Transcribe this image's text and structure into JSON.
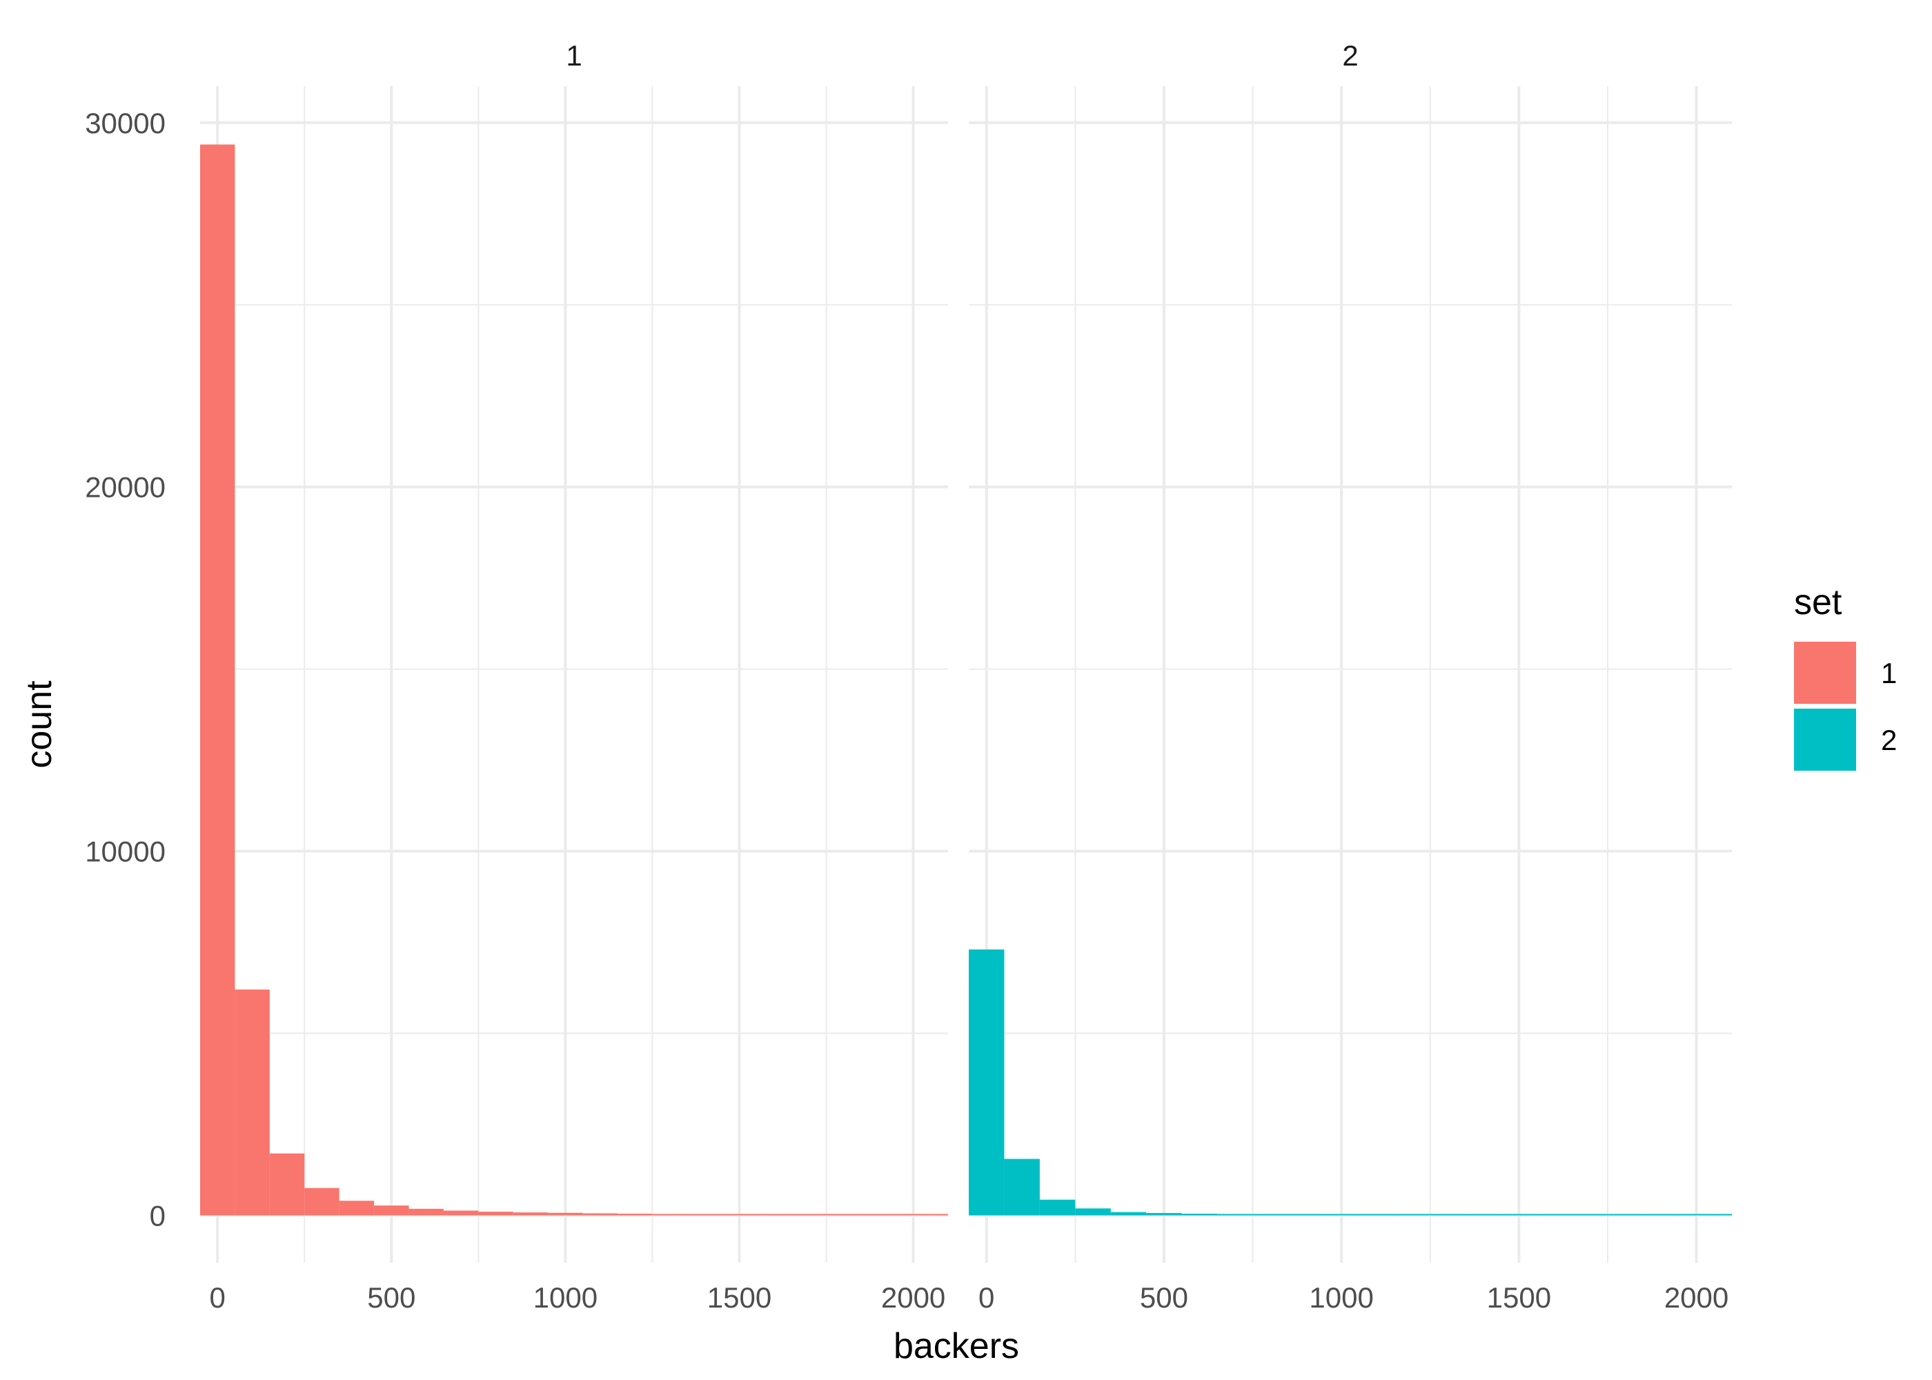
{
  "chart_data": {
    "type": "bar",
    "subtype": "histogram-faceted",
    "xlabel": "backers",
    "ylabel": "count",
    "xlim": [
      -50,
      2100
    ],
    "ylim": [
      -1300,
      31000
    ],
    "x_ticks": [
      0,
      500,
      1000,
      1500,
      2000
    ],
    "y_ticks": [
      0,
      10000,
      20000,
      30000
    ],
    "x_tick_labels": [
      "0",
      "500",
      "1000",
      "1500",
      "2000"
    ],
    "y_tick_labels": [
      "0",
      "10000",
      "20000",
      "30000"
    ],
    "bin_width": 100,
    "grid": true,
    "legend": {
      "title": "set",
      "position": "right",
      "entries": [
        {
          "label": "1",
          "color": "#F8766D"
        },
        {
          "label": "2",
          "color": "#00BFC4"
        }
      ]
    },
    "facets": [
      {
        "label": "1",
        "color": "#F8766D",
        "bins": [
          {
            "x0": -50,
            "x1": 50,
            "count": 29400
          },
          {
            "x0": 50,
            "x1": 150,
            "count": 6200
          },
          {
            "x0": 150,
            "x1": 250,
            "count": 1700
          },
          {
            "x0": 250,
            "x1": 350,
            "count": 750
          },
          {
            "x0": 350,
            "x1": 450,
            "count": 400
          },
          {
            "x0": 450,
            "x1": 550,
            "count": 270
          },
          {
            "x0": 550,
            "x1": 650,
            "count": 180
          },
          {
            "x0": 650,
            "x1": 750,
            "count": 130
          },
          {
            "x0": 750,
            "x1": 850,
            "count": 100
          },
          {
            "x0": 850,
            "x1": 950,
            "count": 80
          },
          {
            "x0": 950,
            "x1": 1050,
            "count": 70
          },
          {
            "x0": 1050,
            "x1": 1150,
            "count": 55
          },
          {
            "x0": 1150,
            "x1": 1250,
            "count": 45
          },
          {
            "x0": 1250,
            "x1": 1350,
            "count": 35
          },
          {
            "x0": 1350,
            "x1": 1450,
            "count": 30
          },
          {
            "x0": 1450,
            "x1": 1550,
            "count": 28
          },
          {
            "x0": 1550,
            "x1": 1650,
            "count": 25
          },
          {
            "x0": 1650,
            "x1": 1750,
            "count": 22
          },
          {
            "x0": 1750,
            "x1": 1850,
            "count": 18
          },
          {
            "x0": 1850,
            "x1": 1950,
            "count": 20
          },
          {
            "x0": 1950,
            "x1": 2050,
            "count": 18
          },
          {
            "x0": 2050,
            "x1": 2150,
            "count": 15
          }
        ]
      },
      {
        "label": "2",
        "color": "#00BFC4",
        "bins": [
          {
            "x0": -50,
            "x1": 50,
            "count": 7300
          },
          {
            "x0": 50,
            "x1": 150,
            "count": 1550
          },
          {
            "x0": 150,
            "x1": 250,
            "count": 430
          },
          {
            "x0": 250,
            "x1": 350,
            "count": 190
          },
          {
            "x0": 350,
            "x1": 450,
            "count": 90
          },
          {
            "x0": 450,
            "x1": 550,
            "count": 65
          },
          {
            "x0": 550,
            "x1": 650,
            "count": 45
          },
          {
            "x0": 650,
            "x1": 750,
            "count": 35
          },
          {
            "x0": 750,
            "x1": 850,
            "count": 28
          },
          {
            "x0": 850,
            "x1": 950,
            "count": 22
          },
          {
            "x0": 950,
            "x1": 1050,
            "count": 18
          },
          {
            "x0": 1050,
            "x1": 1150,
            "count": 15
          },
          {
            "x0": 1150,
            "x1": 1250,
            "count": 12
          },
          {
            "x0": 1250,
            "x1": 1350,
            "count": 10
          },
          {
            "x0": 1350,
            "x1": 1450,
            "count": 9
          },
          {
            "x0": 1450,
            "x1": 1550,
            "count": 8
          },
          {
            "x0": 1550,
            "x1": 1650,
            "count": 7
          },
          {
            "x0": 1650,
            "x1": 1750,
            "count": 5
          },
          {
            "x0": 1750,
            "x1": 1850,
            "count": 5
          },
          {
            "x0": 1850,
            "x1": 1950,
            "count": 4
          },
          {
            "x0": 1950,
            "x1": 2050,
            "count": 3
          },
          {
            "x0": 2050,
            "x1": 2150,
            "count": 3
          }
        ]
      }
    ]
  }
}
